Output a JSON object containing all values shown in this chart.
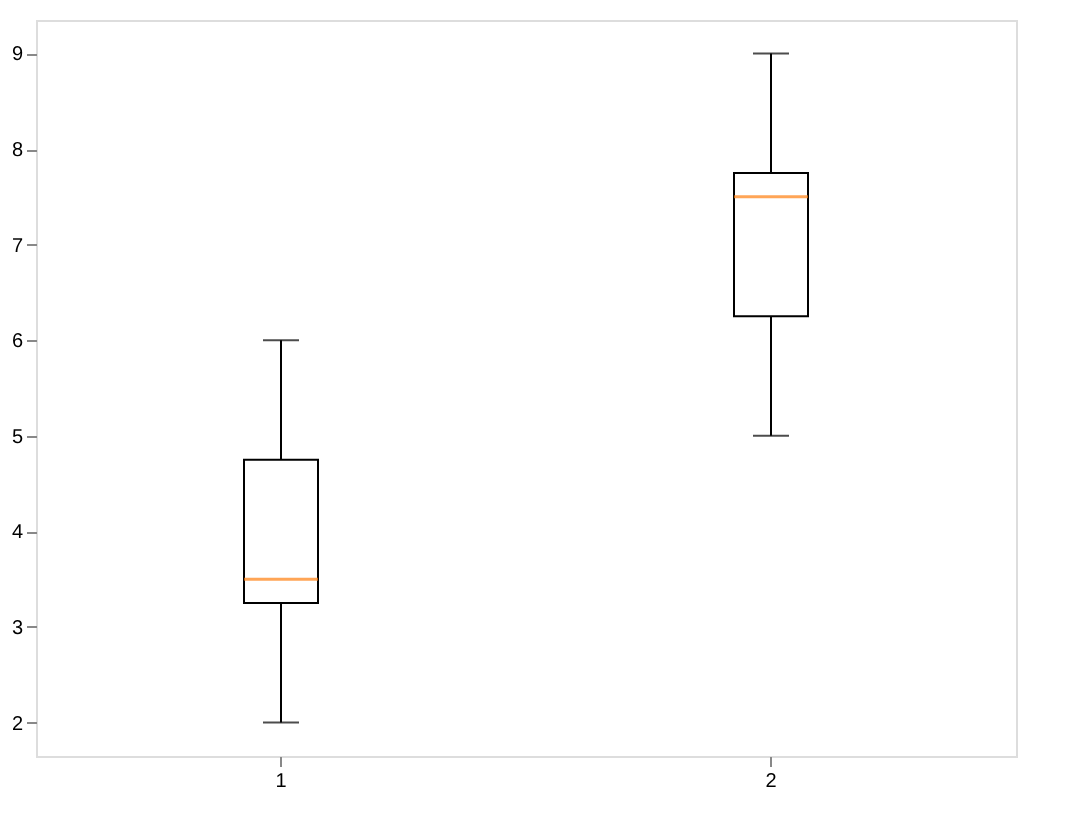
{
  "chart_data": {
    "type": "box",
    "categories": [
      "1",
      "2"
    ],
    "boxes": [
      {
        "low": 2,
        "q1": 3.25,
        "median": 3.5,
        "q3": 4.75,
        "high": 6
      },
      {
        "low": 5,
        "q1": 6.25,
        "median": 7.5,
        "q3": 7.75,
        "high": 9
      }
    ],
    "ylim": [
      1.65,
      9.35
    ],
    "yticks": [
      2,
      3,
      4,
      5,
      6,
      7,
      8,
      9
    ],
    "grid": false
  }
}
